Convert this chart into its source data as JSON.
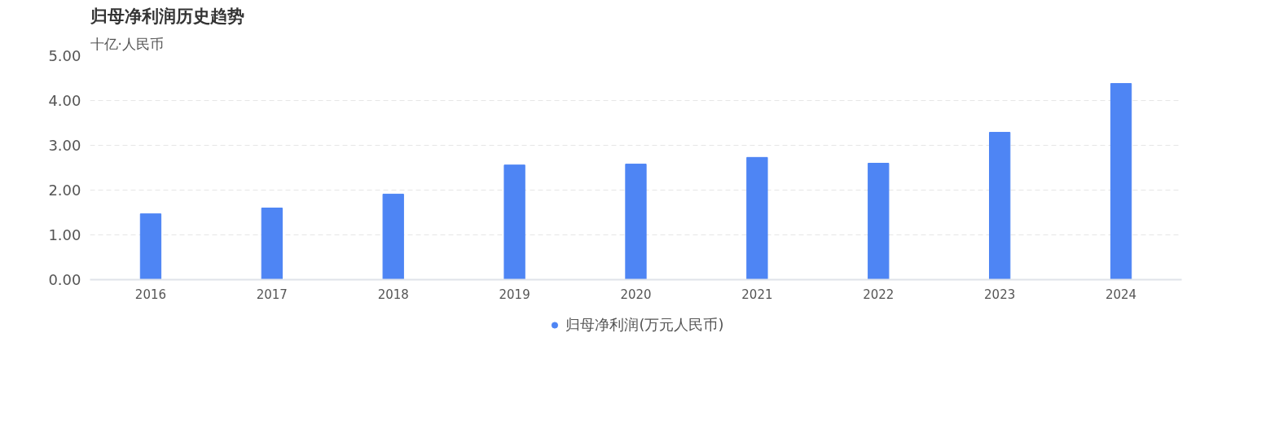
{
  "chart_data": {
    "type": "bar",
    "title": "归母净利润历史趋势",
    "ylabel": "十亿·人民币",
    "categories": [
      "2016",
      "2017",
      "2018",
      "2019",
      "2020",
      "2021",
      "2022",
      "2023",
      "2024"
    ],
    "series": [
      {
        "name": "归母净利润(万元人民币)",
        "color": "#4e85f4",
        "values": [
          1.47,
          1.6,
          1.91,
          2.56,
          2.58,
          2.73,
          2.6,
          3.29,
          4.38
        ]
      }
    ],
    "ylim": [
      0,
      5
    ],
    "yticks": [
      {
        "value": 0,
        "label": "0.00"
      },
      {
        "value": 1,
        "label": "1.00"
      },
      {
        "value": 2,
        "label": "2.00"
      },
      {
        "value": 3,
        "label": "3.00"
      },
      {
        "value": 4,
        "label": "4.00"
      },
      {
        "value": 5,
        "label": "5.00"
      }
    ],
    "grid": "y",
    "legend": "bottom"
  }
}
